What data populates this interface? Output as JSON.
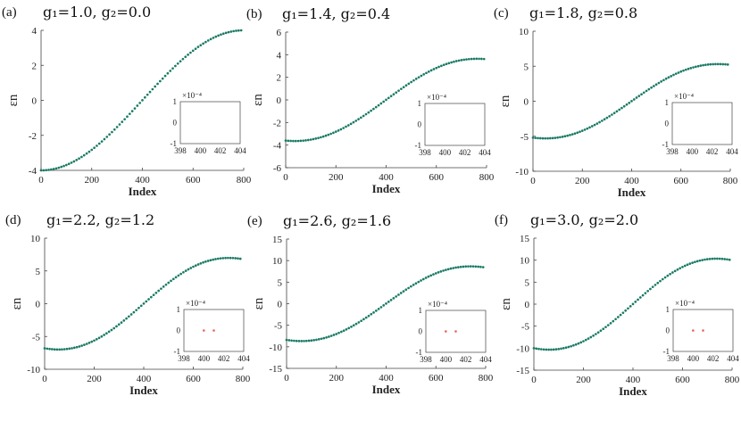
{
  "colors": {
    "series": "#1a7a64",
    "inset_point": "#e8615a",
    "axis": "#444444"
  },
  "chart_data": [
    {
      "type": "scatter",
      "panel": "(a)",
      "params": "g₁=1.0, g₂=0.0",
      "g1": 1.0,
      "g2": 0.0,
      "xlabel": "Index",
      "ylabel": "εn",
      "xlim": [
        0,
        800
      ],
      "ylim": [
        -4,
        4
      ],
      "xticks": [
        "0",
        "200",
        "400",
        "600",
        "800"
      ],
      "yticks": [
        "-4",
        "-2",
        "0",
        "2",
        "4"
      ],
      "n_points": 800,
      "inset": {
        "xlim": [
          398,
          404
        ],
        "ylim": [
          -1,
          1
        ],
        "xticks": [
          "398",
          "400",
          "402",
          "404"
        ],
        "yticks": [
          "-1",
          "0",
          "1"
        ],
        "exponent": "×10⁻⁴",
        "points": []
      }
    },
    {
      "type": "scatter",
      "panel": "(b)",
      "params": "g₁=1.4, g₂=0.4",
      "g1": 1.4,
      "g2": 0.4,
      "xlabel": "Index",
      "ylabel": "εn",
      "xlim": [
        0,
        800
      ],
      "ylim": [
        -6,
        6
      ],
      "xticks": [
        "0",
        "200",
        "400",
        "600",
        "800"
      ],
      "yticks": [
        "-6",
        "-4",
        "-2",
        "0",
        "2",
        "4",
        "6"
      ],
      "n_points": 800,
      "inset": {
        "xlim": [
          398,
          404
        ],
        "ylim": [
          -1,
          1
        ],
        "xticks": [
          "398",
          "400",
          "402",
          "404"
        ],
        "yticks": [
          "-1",
          "0",
          "1"
        ],
        "exponent": "×10⁻⁴",
        "points": []
      }
    },
    {
      "type": "scatter",
      "panel": "(c)",
      "params": "g₁=1.8, g₂=0.8",
      "g1": 1.8,
      "g2": 0.8,
      "xlabel": "Index",
      "ylabel": "εn",
      "xlim": [
        0,
        800
      ],
      "ylim": [
        -10,
        10
      ],
      "xticks": [
        "0",
        "200",
        "400",
        "600",
        "800"
      ],
      "yticks": [
        "-10",
        "-5",
        "0",
        "5",
        "10"
      ],
      "n_points": 800,
      "inset": {
        "xlim": [
          398,
          404
        ],
        "ylim": [
          -1,
          1
        ],
        "xticks": [
          "398",
          "400",
          "402",
          "404"
        ],
        "yticks": [
          "-1",
          "0",
          "1"
        ],
        "exponent": "×10⁻⁴",
        "points": []
      }
    },
    {
      "type": "scatter",
      "panel": "(d)",
      "params": "g₁=2.2, g₂=1.2",
      "g1": 2.2,
      "g2": 1.2,
      "xlabel": "Index",
      "ylabel": "εn",
      "xlim": [
        0,
        800
      ],
      "ylim": [
        -10,
        10
      ],
      "xticks": [
        "0",
        "200",
        "400",
        "600",
        "800"
      ],
      "yticks": [
        "-10",
        "-5",
        "0",
        "5",
        "10"
      ],
      "n_points": 800,
      "inset": {
        "xlim": [
          398,
          404
        ],
        "ylim": [
          -1,
          1
        ],
        "xticks": [
          "398",
          "400",
          "402",
          "404"
        ],
        "yticks": [
          "-1",
          "0",
          "1"
        ],
        "exponent": "×10⁻⁴",
        "points": [
          [
            400,
            0
          ],
          [
            401,
            0
          ]
        ]
      }
    },
    {
      "type": "scatter",
      "panel": "(e)",
      "params": "g₁=2.6, g₂=1.6",
      "g1": 2.6,
      "g2": 1.6,
      "xlabel": "Index",
      "ylabel": "εn",
      "xlim": [
        0,
        800
      ],
      "ylim": [
        -15,
        15
      ],
      "xticks": [
        "0",
        "200",
        "400",
        "600",
        "800"
      ],
      "yticks": [
        "-15",
        "-10",
        "-5",
        "0",
        "5",
        "10",
        "15"
      ],
      "n_points": 800,
      "inset": {
        "xlim": [
          398,
          404
        ],
        "ylim": [
          -1,
          1
        ],
        "xticks": [
          "398",
          "400",
          "402",
          "404"
        ],
        "yticks": [
          "-1",
          "0",
          "1"
        ],
        "exponent": "×10⁻⁴",
        "points": [
          [
            400,
            0
          ],
          [
            401,
            0
          ]
        ]
      }
    },
    {
      "type": "scatter",
      "panel": "(f)",
      "params": "g₁=3.0, g₂=2.0",
      "g1": 3.0,
      "g2": 2.0,
      "xlabel": "Index",
      "ylabel": "εn",
      "xlim": [
        0,
        800
      ],
      "ylim": [
        -15,
        15
      ],
      "xticks": [
        "0",
        "200",
        "400",
        "600",
        "800"
      ],
      "yticks": [
        "-15",
        "-10",
        "-5",
        "0",
        "5",
        "10",
        "15"
      ],
      "n_points": 800,
      "inset": {
        "xlim": [
          398,
          404
        ],
        "ylim": [
          -1,
          1
        ],
        "xticks": [
          "398",
          "400",
          "402",
          "404"
        ],
        "yticks": [
          "-1",
          "0",
          "1"
        ],
        "exponent": "×10⁻⁴",
        "points": [
          [
            400,
            0
          ],
          [
            401,
            0
          ]
        ]
      }
    }
  ]
}
